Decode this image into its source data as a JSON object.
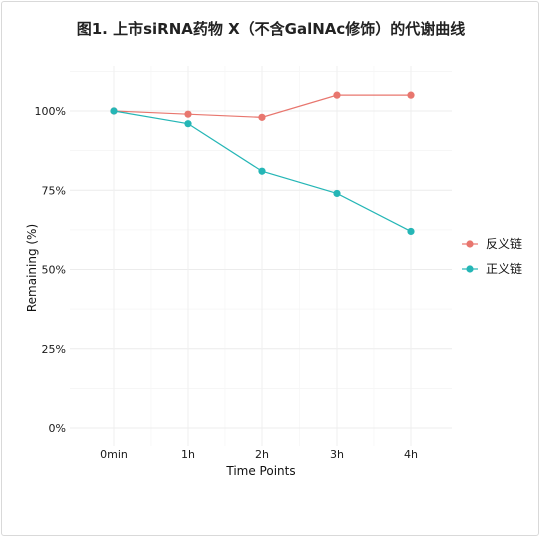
{
  "chart_data": {
    "type": "line",
    "title": "图1. 上市siRNA药物 X（不含GalNAc修饰）的代谢曲线",
    "xlabel": "Time Points",
    "ylabel": "Remaining (%)",
    "categories": [
      "0min",
      "1h",
      "2h",
      "3h",
      "4h"
    ],
    "ylim": [
      0,
      100
    ],
    "yticks": [
      0,
      25,
      50,
      75,
      100
    ],
    "ytick_labels": [
      "0%",
      "25%",
      "50%",
      "75%",
      "100%"
    ],
    "grid": true,
    "legend_position": "right",
    "series": [
      {
        "name": "反义链",
        "color": "#e8766e",
        "values": [
          100,
          99,
          98,
          105,
          105
        ]
      },
      {
        "name": "正义链",
        "color": "#25b6b6",
        "values": [
          100,
          96,
          81,
          74,
          62
        ]
      }
    ]
  }
}
